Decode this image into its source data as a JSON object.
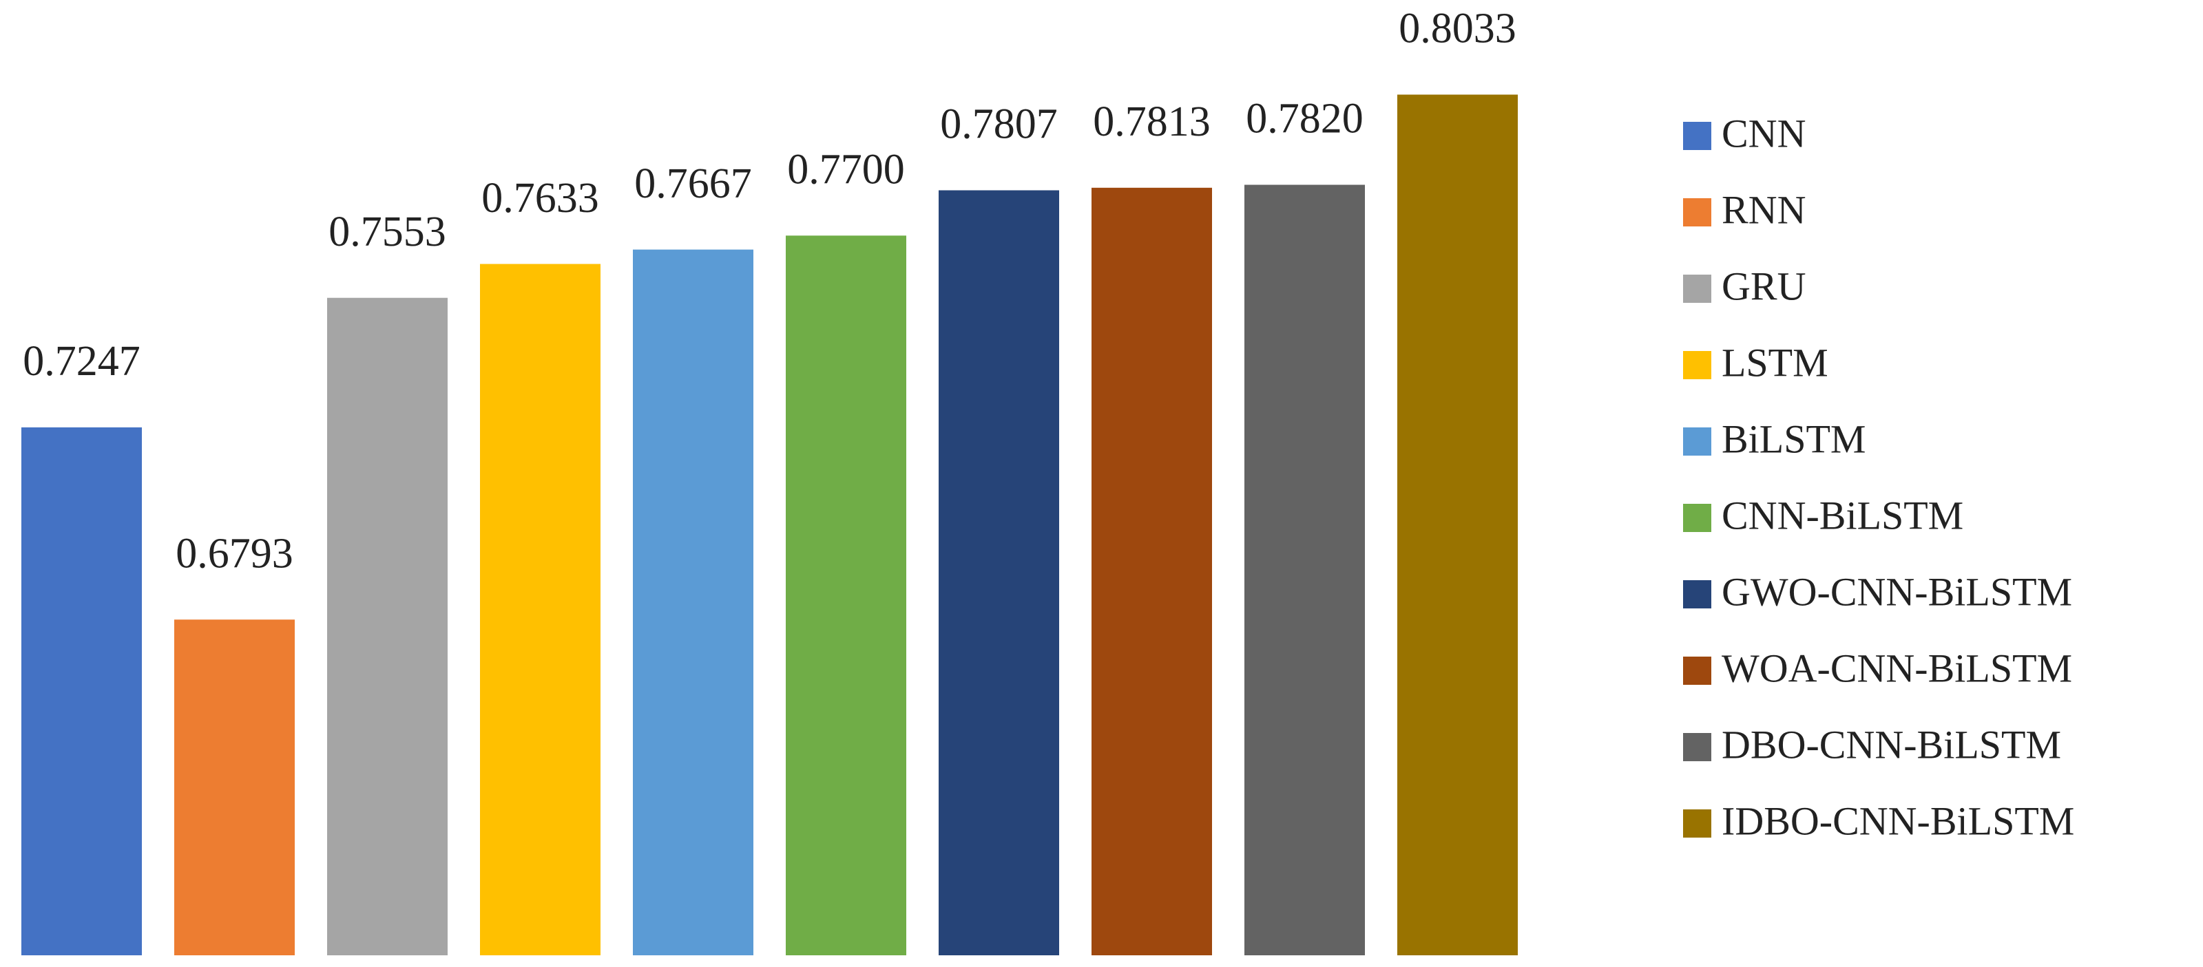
{
  "chart_data": {
    "type": "bar",
    "categories": [
      "CNN",
      "RNN",
      "GRU",
      "LSTM",
      "BiLSTM",
      "CNN-BiLSTM",
      "GWO-CNN-BiLSTM",
      "WOA-CNN-BiLSTM",
      "DBO-CNN-BiLSTM",
      "IDBO-CNN-BiLSTM"
    ],
    "values": [
      0.7247,
      0.6793,
      0.7553,
      0.7633,
      0.7667,
      0.77,
      0.7807,
      0.7813,
      0.782,
      0.8033
    ],
    "value_labels": [
      "0.7247",
      "0.6793",
      "0.7553",
      "0.7633",
      "0.7667",
      "0.7700",
      "0.7807",
      "0.7813",
      "0.7820",
      "0.8033"
    ],
    "colors": [
      "#4472c4",
      "#ed7d31",
      "#a5a5a5",
      "#ffc000",
      "#5b9bd5",
      "#70ad47",
      "#264478",
      "#9e480e",
      "#636363",
      "#997300"
    ],
    "ylim": [
      0.6,
      0.825
    ],
    "legend": "right"
  }
}
